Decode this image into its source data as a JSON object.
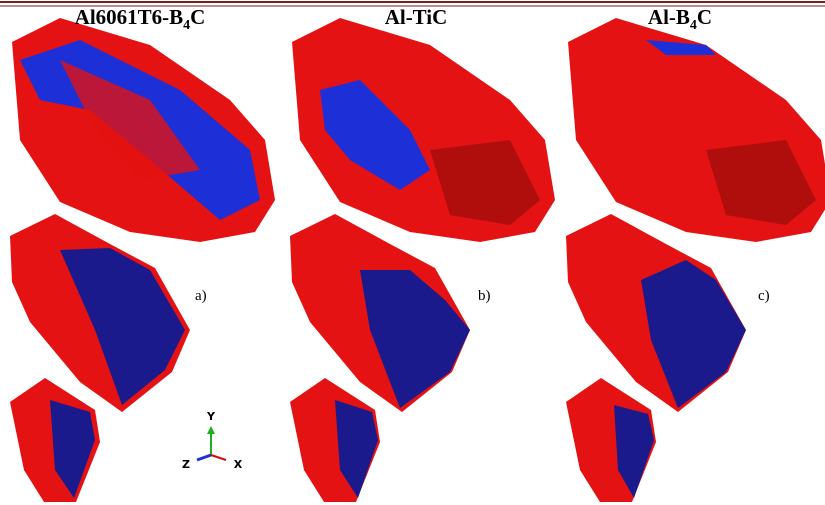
{
  "panels": [
    {
      "title": [
        "Al6061T6-B",
        "4",
        "C"
      ],
      "label": "a)"
    },
    {
      "title": [
        "Al-TiC"
      ],
      "label": "b)"
    },
    {
      "title": [
        "Al-B",
        "4",
        "C"
      ],
      "label": "c)"
    }
  ],
  "axes": {
    "y": "Y",
    "z": "Z",
    "x": "X"
  }
}
